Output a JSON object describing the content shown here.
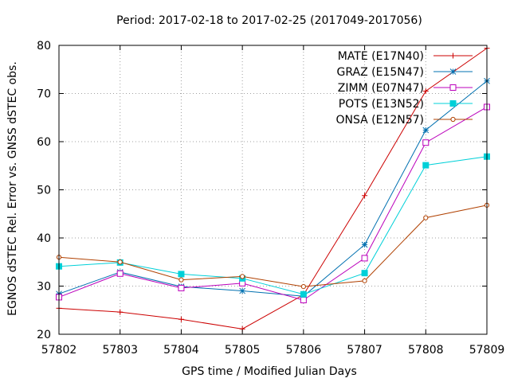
{
  "chart_data": {
    "type": "line",
    "title": "Period: 2017-02-18 to 2017-02-25 (2017049-2017056)",
    "xlabel": "GPS time / Modified Julian Days",
    "ylabel": "EGNOS dSTEC Rel. Error vs. GNSS dSTEC obs.",
    "x": [
      57802,
      57803,
      57804,
      57805,
      57806,
      57807,
      57808,
      57809
    ],
    "xlim": [
      57802,
      57809
    ],
    "ylim": [
      20,
      80
    ],
    "xticks": [
      "57802",
      "57803",
      "57804",
      "57805",
      "57806",
      "57807",
      "57808",
      "57809"
    ],
    "yticks": [
      "20",
      "30",
      "40",
      "50",
      "60",
      "70",
      "80"
    ],
    "grid": true,
    "legend_position": "top-right",
    "series": [
      {
        "name": "MATE (E17N40)",
        "color": "#cc0000",
        "marker": "plus",
        "values": [
          25.4,
          24.6,
          23.1,
          21.1,
          28.2,
          48.8,
          70.5,
          79.4
        ]
      },
      {
        "name": "GRAZ (E15N47)",
        "color": "#0070b0",
        "marker": "star",
        "values": [
          28.4,
          32.9,
          29.9,
          29.0,
          27.9,
          38.6,
          62.4,
          72.6
        ]
      },
      {
        "name": "ZIMM (E07N47)",
        "color": "#bb00bb",
        "marker": "open-square",
        "values": [
          27.7,
          32.6,
          29.6,
          30.6,
          27.1,
          35.8,
          59.8,
          67.2
        ]
      },
      {
        "name": "POTS (E13N52)",
        "color": "#00d0d8",
        "marker": "filled-square",
        "values": [
          34.1,
          34.9,
          32.5,
          31.6,
          28.3,
          32.7,
          55.1,
          56.9
        ]
      },
      {
        "name": "ONSA (E12N57)",
        "color": "#b04000",
        "marker": "open-circle",
        "values": [
          36.0,
          35.0,
          31.3,
          32.0,
          29.9,
          31.1,
          44.2,
          46.8
        ]
      }
    ]
  }
}
